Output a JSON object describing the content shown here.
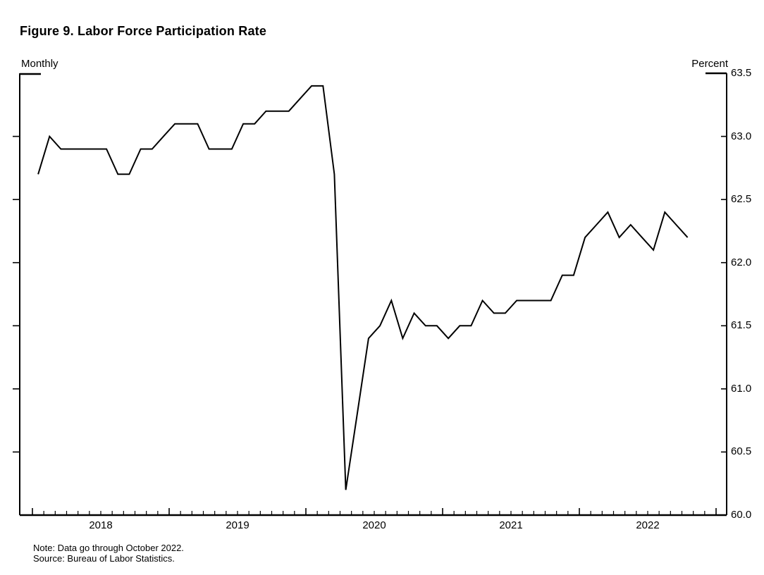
{
  "figure": {
    "title": "Figure 9. Labor Force Participation Rate",
    "left_unit_label": "Monthly",
    "right_unit_label": "Percent",
    "note": "Note: Data go through October 2022.",
    "source": "Source: Bureau of Labor Statistics."
  },
  "chart_data": {
    "type": "line",
    "title": "Figure 9. Labor Force Participation Rate",
    "xlabel": "",
    "ylabel": "Percent",
    "frequency": "Monthly",
    "x_range": {
      "start": "2018-01",
      "end": "2022-10"
    },
    "x_tick_years": [
      "2018",
      "2019",
      "2020",
      "2021",
      "2022"
    ],
    "y_tick_labels": [
      "63.5",
      "63.0",
      "62.5",
      "62.0",
      "61.5",
      "61.0",
      "60.5",
      "60.0"
    ],
    "ylim": [
      60.0,
      63.5
    ],
    "grid": false,
    "legend": "none",
    "line_color": "#000000",
    "series": [
      {
        "name": "Labor force participation rate",
        "values": [
          62.7,
          63.0,
          62.9,
          62.9,
          62.9,
          62.9,
          62.9,
          62.7,
          62.7,
          62.9,
          62.9,
          63.0,
          63.1,
          63.1,
          63.1,
          62.9,
          62.9,
          62.9,
          63.1,
          63.1,
          63.2,
          63.2,
          63.2,
          63.3,
          63.4,
          63.4,
          62.7,
          60.2,
          60.8,
          61.4,
          61.5,
          61.7,
          61.4,
          61.6,
          61.5,
          61.5,
          61.4,
          61.5,
          61.5,
          61.7,
          61.6,
          61.6,
          61.7,
          61.7,
          61.7,
          61.7,
          61.9,
          61.9,
          62.2,
          62.3,
          62.4,
          62.2,
          62.3,
          62.2,
          62.1,
          62.4,
          62.3,
          62.2
        ]
      }
    ]
  }
}
